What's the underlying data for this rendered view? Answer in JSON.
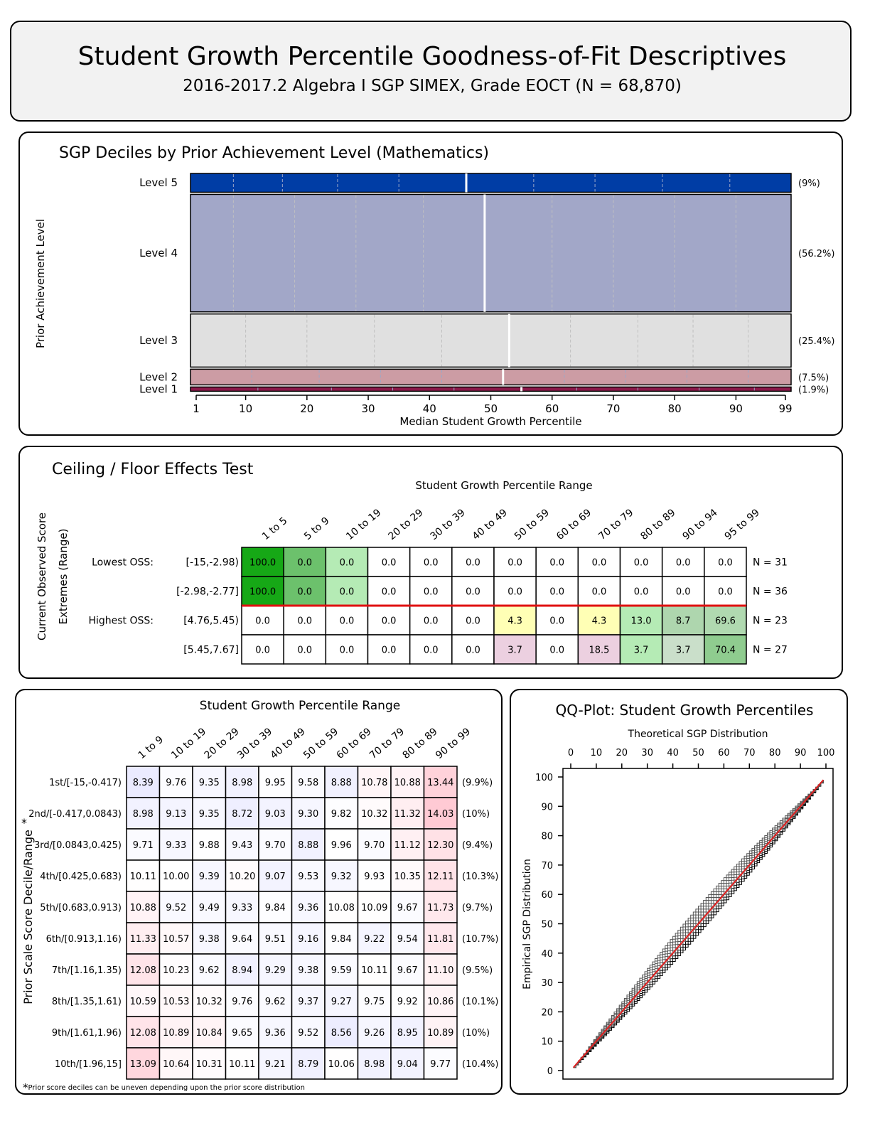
{
  "header": {
    "title": "Student Growth Percentile Goodness-of-Fit Descriptives",
    "subtitle": "2016-2017.2 Algebra I SGP SIMEX, Grade EOCT (N = 68,870)"
  },
  "chart_data": [
    {
      "type": "bar",
      "title": "SGP Deciles by Prior Achievement Level (Mathematics)",
      "xlabel": "Median Student Growth Percentile",
      "ylabel": "Prior Achievement Level",
      "xticks": [
        1,
        10,
        20,
        30,
        40,
        50,
        60,
        70,
        80,
        90,
        99
      ],
      "xlim": [
        1,
        99
      ],
      "levels": [
        {
          "label": "Level 5",
          "pct": "(9%)",
          "share": 9,
          "color": "#003da5",
          "median": 46,
          "deciles": [
            8,
            16,
            25,
            35,
            46,
            57,
            67,
            78,
            89
          ]
        },
        {
          "label": "Level 4",
          "pct": "(56.2%)",
          "share": 56.2,
          "color": "#a2a7c8",
          "median": 49,
          "deciles": [
            8,
            18,
            28,
            39,
            49,
            60,
            70,
            80,
            90
          ]
        },
        {
          "label": "Level 3",
          "pct": "(25.4%)",
          "share": 25.4,
          "color": "#e0e0e0",
          "median": 53,
          "deciles": [
            10,
            20,
            31,
            42,
            53,
            63,
            74,
            83,
            92
          ]
        },
        {
          "label": "Level 2",
          "pct": "(7.5%)",
          "share": 7.5,
          "color": "#cc9ca4",
          "median": 52,
          "deciles": [
            11,
            22,
            32,
            42,
            52,
            62,
            72,
            82,
            92
          ]
        },
        {
          "label": "Level 1",
          "pct": "(1.9%)",
          "share": 1.9,
          "color": "#8b1a4a",
          "median": 55,
          "deciles": [
            12,
            24,
            34,
            44,
            55,
            64,
            74,
            84,
            93
          ]
        }
      ]
    },
    {
      "type": "table",
      "title": "Ceiling / Floor Effects Test",
      "col_title": "Student Growth Percentile Range",
      "ylabel": [
        "Current Observed Score",
        "Extremes (Range)"
      ],
      "columns": [
        "1 to 5",
        "5 to 9",
        "10 to 19",
        "20 to 29",
        "30 to 39",
        "40 to 49",
        "50 to 59",
        "60 to 69",
        "70 to 79",
        "80 to 89",
        "90 to 94",
        "95 to 99"
      ],
      "rows": [
        {
          "group": "Lowest OSS:",
          "range": "[-15,-2.98)",
          "n": "N = 31",
          "values": [
            "100.0",
            "0.0",
            "0.0",
            "0.0",
            "0.0",
            "0.0",
            "0.0",
            "0.0",
            "0.0",
            "0.0",
            "0.0",
            "0.0"
          ],
          "colors": [
            "#16a816",
            "#6cc16c",
            "#b5ebb5",
            "#fff",
            "#fff",
            "#fff",
            "#fff",
            "#fff",
            "#fff",
            "#fff",
            "#fff",
            "#fff"
          ]
        },
        {
          "group": "",
          "range": "[-2.98,-2.77]",
          "n": "N = 36",
          "values": [
            "100.0",
            "0.0",
            "0.0",
            "0.0",
            "0.0",
            "0.0",
            "0.0",
            "0.0",
            "0.0",
            "0.0",
            "0.0",
            "0.0"
          ],
          "colors": [
            "#16a816",
            "#6cc16c",
            "#b5ebb5",
            "#fff",
            "#fff",
            "#fff",
            "#fff",
            "#fff",
            "#fff",
            "#fff",
            "#fff",
            "#fff"
          ]
        },
        {
          "group": "Highest OSS:",
          "range": "[4.76,5.45)",
          "n": "N = 23",
          "values": [
            "0.0",
            "0.0",
            "0.0",
            "0.0",
            "0.0",
            "0.0",
            "4.3",
            "0.0",
            "4.3",
            "13.0",
            "8.7",
            "69.6"
          ],
          "colors": [
            "#fff",
            "#fff",
            "#fff",
            "#fff",
            "#fff",
            "#fff",
            "#ffffb5",
            "#fff",
            "#ffffb5",
            "#b5ebb5",
            "#aed6ae",
            "#b0d9b0"
          ]
        },
        {
          "group": "",
          "range": "[5.45,7.67]",
          "n": "N = 27",
          "values": [
            "0.0",
            "0.0",
            "0.0",
            "0.0",
            "0.0",
            "0.0",
            "3.7",
            "0.0",
            "18.5",
            "3.7",
            "3.7",
            "70.4"
          ],
          "colors": [
            "#fff",
            "#fff",
            "#fff",
            "#fff",
            "#fff",
            "#fff",
            "#ecd0e0",
            "#fff",
            "#ecd0e0",
            "#b5ebb5",
            "#cadfca",
            "#8fcc8f"
          ]
        }
      ]
    },
    {
      "type": "heatmap",
      "col_title": "Student Growth Percentile Range",
      "ylabel": "Prior Scale Score Decile/Range",
      "ylabel_star": "*",
      "columns": [
        "1 to 9",
        "10 to 19",
        "20 to 29",
        "30 to 39",
        "40 to 49",
        "50 to 59",
        "60 to 69",
        "70 to 79",
        "80 to 89",
        "90 to 99"
      ],
      "rows": [
        {
          "label": "1st/[-15,-0.417)",
          "pct": "(9.9%)",
          "values": [
            8.39,
            9.76,
            9.35,
            8.98,
            9.95,
            9.58,
            8.88,
            10.78,
            10.88,
            13.44
          ]
        },
        {
          "label": "2nd/[-0.417,0.0843)",
          "pct": "(10%)",
          "values": [
            8.98,
            9.13,
            9.35,
            8.72,
            9.03,
            9.3,
            9.82,
            10.32,
            11.32,
            14.03
          ]
        },
        {
          "label": "3rd/[0.0843,0.425)",
          "pct": "(9.4%)",
          "values": [
            9.71,
            9.33,
            9.88,
            9.43,
            9.7,
            8.88,
            9.96,
            9.7,
            11.12,
            12.3
          ]
        },
        {
          "label": "4th/[0.425,0.683)",
          "pct": "(10.3%)",
          "values": [
            10.11,
            10.0,
            9.39,
            10.2,
            9.07,
            9.53,
            9.32,
            9.93,
            10.35,
            12.11
          ]
        },
        {
          "label": "5th/[0.683,0.913)",
          "pct": "(9.7%)",
          "values": [
            10.88,
            9.52,
            9.49,
            9.33,
            9.84,
            9.36,
            10.08,
            10.09,
            9.67,
            11.73
          ]
        },
        {
          "label": "6th/[0.913,1.16)",
          "pct": "(10.7%)",
          "values": [
            11.33,
            10.57,
            9.38,
            9.64,
            9.51,
            9.16,
            9.84,
            9.22,
            9.54,
            11.81
          ]
        },
        {
          "label": "7th/[1.16,1.35)",
          "pct": "(9.5%)",
          "values": [
            12.08,
            10.23,
            9.62,
            8.94,
            9.29,
            9.38,
            9.59,
            10.11,
            9.67,
            11.1
          ]
        },
        {
          "label": "8th/[1.35,1.61)",
          "pct": "(10.1%)",
          "values": [
            10.59,
            10.53,
            10.32,
            9.76,
            9.62,
            9.37,
            9.27,
            9.75,
            9.92,
            10.86
          ]
        },
        {
          "label": "9th/[1.61,1.96)",
          "pct": "(10%)",
          "values": [
            12.08,
            10.89,
            10.84,
            9.65,
            9.36,
            9.52,
            8.56,
            9.26,
            8.95,
            10.89
          ]
        },
        {
          "label": "10th/[1.96,15]",
          "pct": "(10.4%)",
          "values": [
            13.09,
            10.64,
            10.31,
            10.11,
            9.21,
            8.79,
            10.06,
            8.98,
            9.04,
            9.77
          ]
        }
      ],
      "footnote_star": "*",
      "footnote": "Prior score deciles can be uneven depending upon the prior score distribution"
    },
    {
      "type": "line",
      "title": "QQ-Plot: Student Growth Percentiles",
      "xlabel": "Theoretical SGP Distribution",
      "ylabel": "Empirical SGP Distribution",
      "xlim": [
        0,
        100
      ],
      "ylim": [
        0,
        100
      ],
      "xticks": [
        0,
        10,
        20,
        30,
        40,
        50,
        60,
        70,
        80,
        90,
        100
      ],
      "yticks": [
        0,
        10,
        20,
        30,
        40,
        50,
        60,
        70,
        80,
        90,
        100
      ],
      "reference_line": {
        "x": [
          1,
          99
        ],
        "y": [
          1,
          99
        ],
        "color": "#e02020"
      },
      "series_count": 10,
      "quantiles": [
        1,
        10,
        20,
        30,
        40,
        50,
        60,
        70,
        80,
        90,
        99
      ],
      "curve_offsets": [
        -3,
        -2,
        -1,
        0,
        1,
        2,
        3,
        4,
        5,
        6
      ]
    }
  ]
}
